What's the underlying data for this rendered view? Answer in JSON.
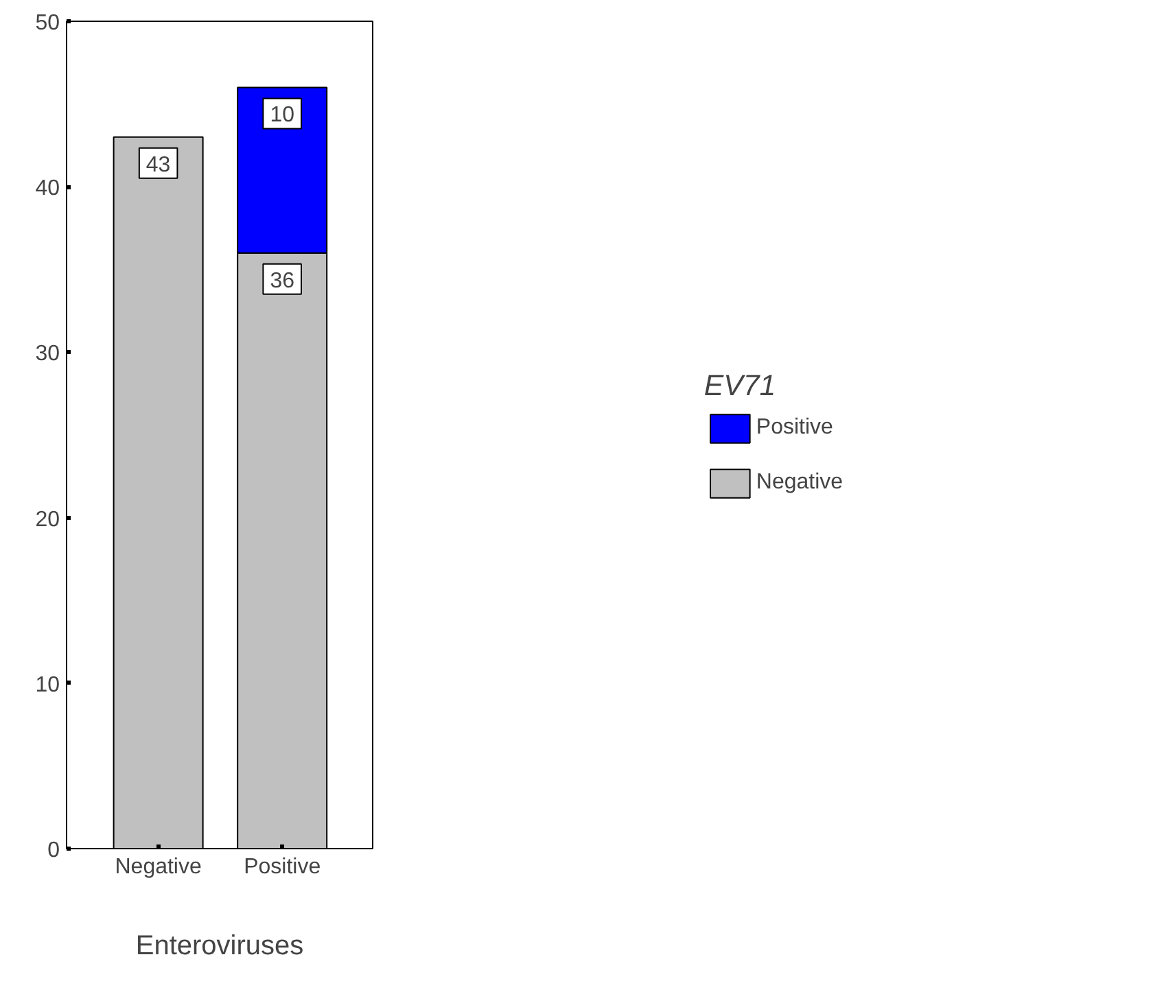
{
  "chart_data": {
    "type": "bar",
    "stacked": true,
    "xlabel": "Enteroviruses",
    "legend_title": "EV71",
    "categories": [
      "Negative",
      "Positive"
    ],
    "series": [
      {
        "name": "Negative",
        "color": "#c0c0c0",
        "values": [
          43,
          36
        ]
      },
      {
        "name": "Positive",
        "color": "#0000ff",
        "values": [
          null,
          10
        ]
      }
    ],
    "ylim": [
      0,
      50
    ],
    "yticks": [
      0,
      10,
      20,
      30,
      40,
      50
    ],
    "grid": false,
    "legend": "right",
    "data_labels": true
  }
}
